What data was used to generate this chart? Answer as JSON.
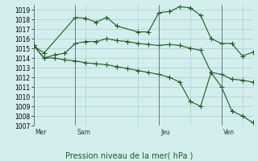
{
  "title": "Pression niveau de la mer( hPa )",
  "bg_color": "#d4eeee",
  "grid_color": "#aacccc",
  "line_color": "#1a5c1a",
  "ylim": [
    1007,
    1019.5
  ],
  "yticks": [
    1007,
    1008,
    1009,
    1010,
    1011,
    1012,
    1013,
    1014,
    1015,
    1016,
    1017,
    1018,
    1019
  ],
  "day_labels": [
    "Mer",
    "Sam",
    "Jeu",
    "Ven"
  ],
  "day_positions": [
    0,
    4,
    12,
    18
  ],
  "line1_x": [
    0,
    1,
    4,
    5,
    6,
    7,
    8,
    10,
    11,
    12,
    13,
    14,
    15,
    16,
    17,
    18,
    19,
    20,
    21
  ],
  "line1_y": [
    1015.3,
    1014.5,
    1018.2,
    1018.1,
    1017.7,
    1018.2,
    1017.3,
    1016.7,
    1016.7,
    1018.7,
    1018.8,
    1019.3,
    1019.2,
    1018.4,
    1016.0,
    1015.5,
    1015.5,
    1014.2,
    1014.6
  ],
  "line2_x": [
    0,
    1,
    2,
    3,
    4,
    5,
    6,
    7,
    8,
    9,
    10,
    11,
    12,
    13,
    14,
    15,
    16,
    17,
    18,
    19,
    20,
    21
  ],
  "line2_y": [
    1015.3,
    1014.0,
    1014.3,
    1014.5,
    1015.5,
    1015.7,
    1015.7,
    1016.0,
    1015.8,
    1015.7,
    1015.5,
    1015.4,
    1015.3,
    1015.4,
    1015.3,
    1015.0,
    1014.8,
    1012.5,
    1012.3,
    1011.8,
    1011.7,
    1011.5
  ],
  "line3_x": [
    0,
    1,
    2,
    3,
    4,
    5,
    6,
    7,
    8,
    9,
    10,
    11,
    12,
    13,
    14,
    15,
    16,
    17,
    18,
    19,
    20,
    21
  ],
  "line3_y": [
    1015.3,
    1014.0,
    1014.0,
    1013.8,
    1013.7,
    1013.5,
    1013.4,
    1013.3,
    1013.1,
    1012.9,
    1012.7,
    1012.5,
    1012.3,
    1012.0,
    1011.5,
    1009.5,
    1009.0,
    1012.5,
    1011.0,
    1008.5,
    1008.0,
    1007.3
  ]
}
